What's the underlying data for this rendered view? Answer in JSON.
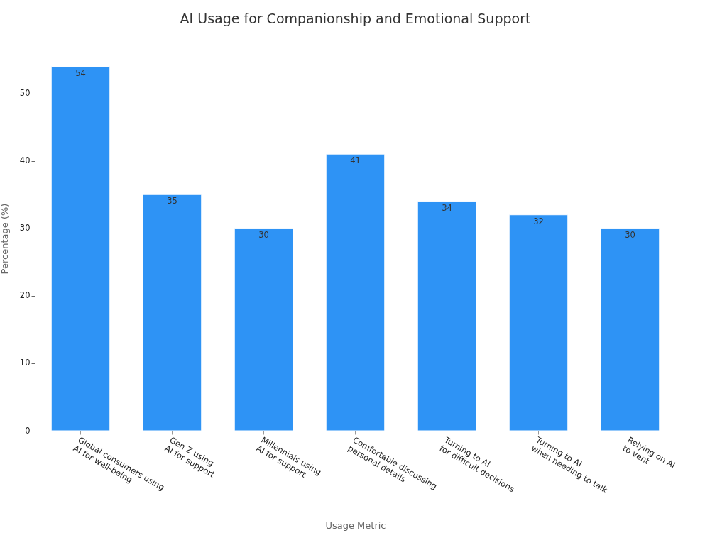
{
  "chart_data": {
    "type": "bar",
    "title": "AI Usage for Companionship and Emotional Support",
    "xlabel": "Usage Metric",
    "ylabel": "Percentage (%)",
    "categories": [
      "Global consumers using\nAI for well-being",
      "Gen Z using\nAI for support",
      "Millennials using\nAI for support",
      "Comfortable discussing\npersonal details",
      "Turning to AI\nfor difficult decisions",
      "Turning to AI\nwhen needing to talk",
      "Relying on AI\nto vent"
    ],
    "values": [
      54,
      35,
      30,
      41,
      34,
      32,
      30
    ],
    "color": "#2e93f5",
    "ylim": [
      0,
      57
    ],
    "yticks": [
      0,
      10,
      20,
      30,
      40,
      50
    ],
    "grid": false,
    "data_labels": true
  }
}
